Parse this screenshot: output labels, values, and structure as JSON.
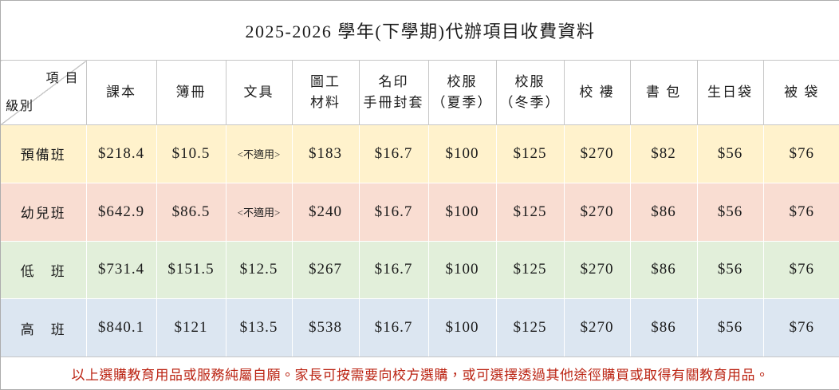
{
  "title": "2025-2026 學年(下學期)代辦項目收費資料",
  "corner": {
    "top_right": "項 目",
    "bottom_left": "級別"
  },
  "columns": [
    "課本",
    "簿冊",
    "文具",
    "圖工\n材料",
    "名印\n手冊封套",
    "校服\n（夏季）",
    "校服\n（冬季）",
    "校 褸",
    "書 包",
    "生日袋",
    "被 袋"
  ],
  "rows": [
    {
      "label": "預備班",
      "bg": "#FFF2CC",
      "values": [
        "$218.4",
        "$10.5",
        "<不適用>",
        "$183",
        "$16.7",
        "$100",
        "$125",
        "$270",
        "$82",
        "$56",
        "$76"
      ]
    },
    {
      "label": "幼兒班",
      "bg": "#F9DDD2",
      "values": [
        "$642.9",
        "$86.5",
        "<不適用>",
        "$240",
        "$16.7",
        "$100",
        "$125",
        "$270",
        "$86",
        "$56",
        "$76"
      ]
    },
    {
      "label": "低　班",
      "bg": "#E2EFDA",
      "values": [
        "$731.4",
        "$151.5",
        "$12.5",
        "$267",
        "$16.7",
        "$100",
        "$125",
        "$270",
        "$86",
        "$56",
        "$76"
      ]
    },
    {
      "label": "高　班",
      "bg": "#DCE6F1",
      "values": [
        "$840.1",
        "$121",
        "$13.5",
        "$538",
        "$16.7",
        "$100",
        "$125",
        "$270",
        "$86",
        "$56",
        "$76"
      ]
    }
  ],
  "footer_note": "以上選購教育用品或服務純屬自願。家長可按需要向校方選購，或可選擇透過其他途徑購買或取得有關教育用品。",
  "colors": {
    "border_outer": "#ADADAD",
    "border_inner": "#C6C6C6",
    "note_red": "#BB2413",
    "row_yellow": "#FFF2CC",
    "row_pink": "#F9DDD2",
    "row_green": "#E2EFDA",
    "row_blue": "#DCE6F1"
  }
}
